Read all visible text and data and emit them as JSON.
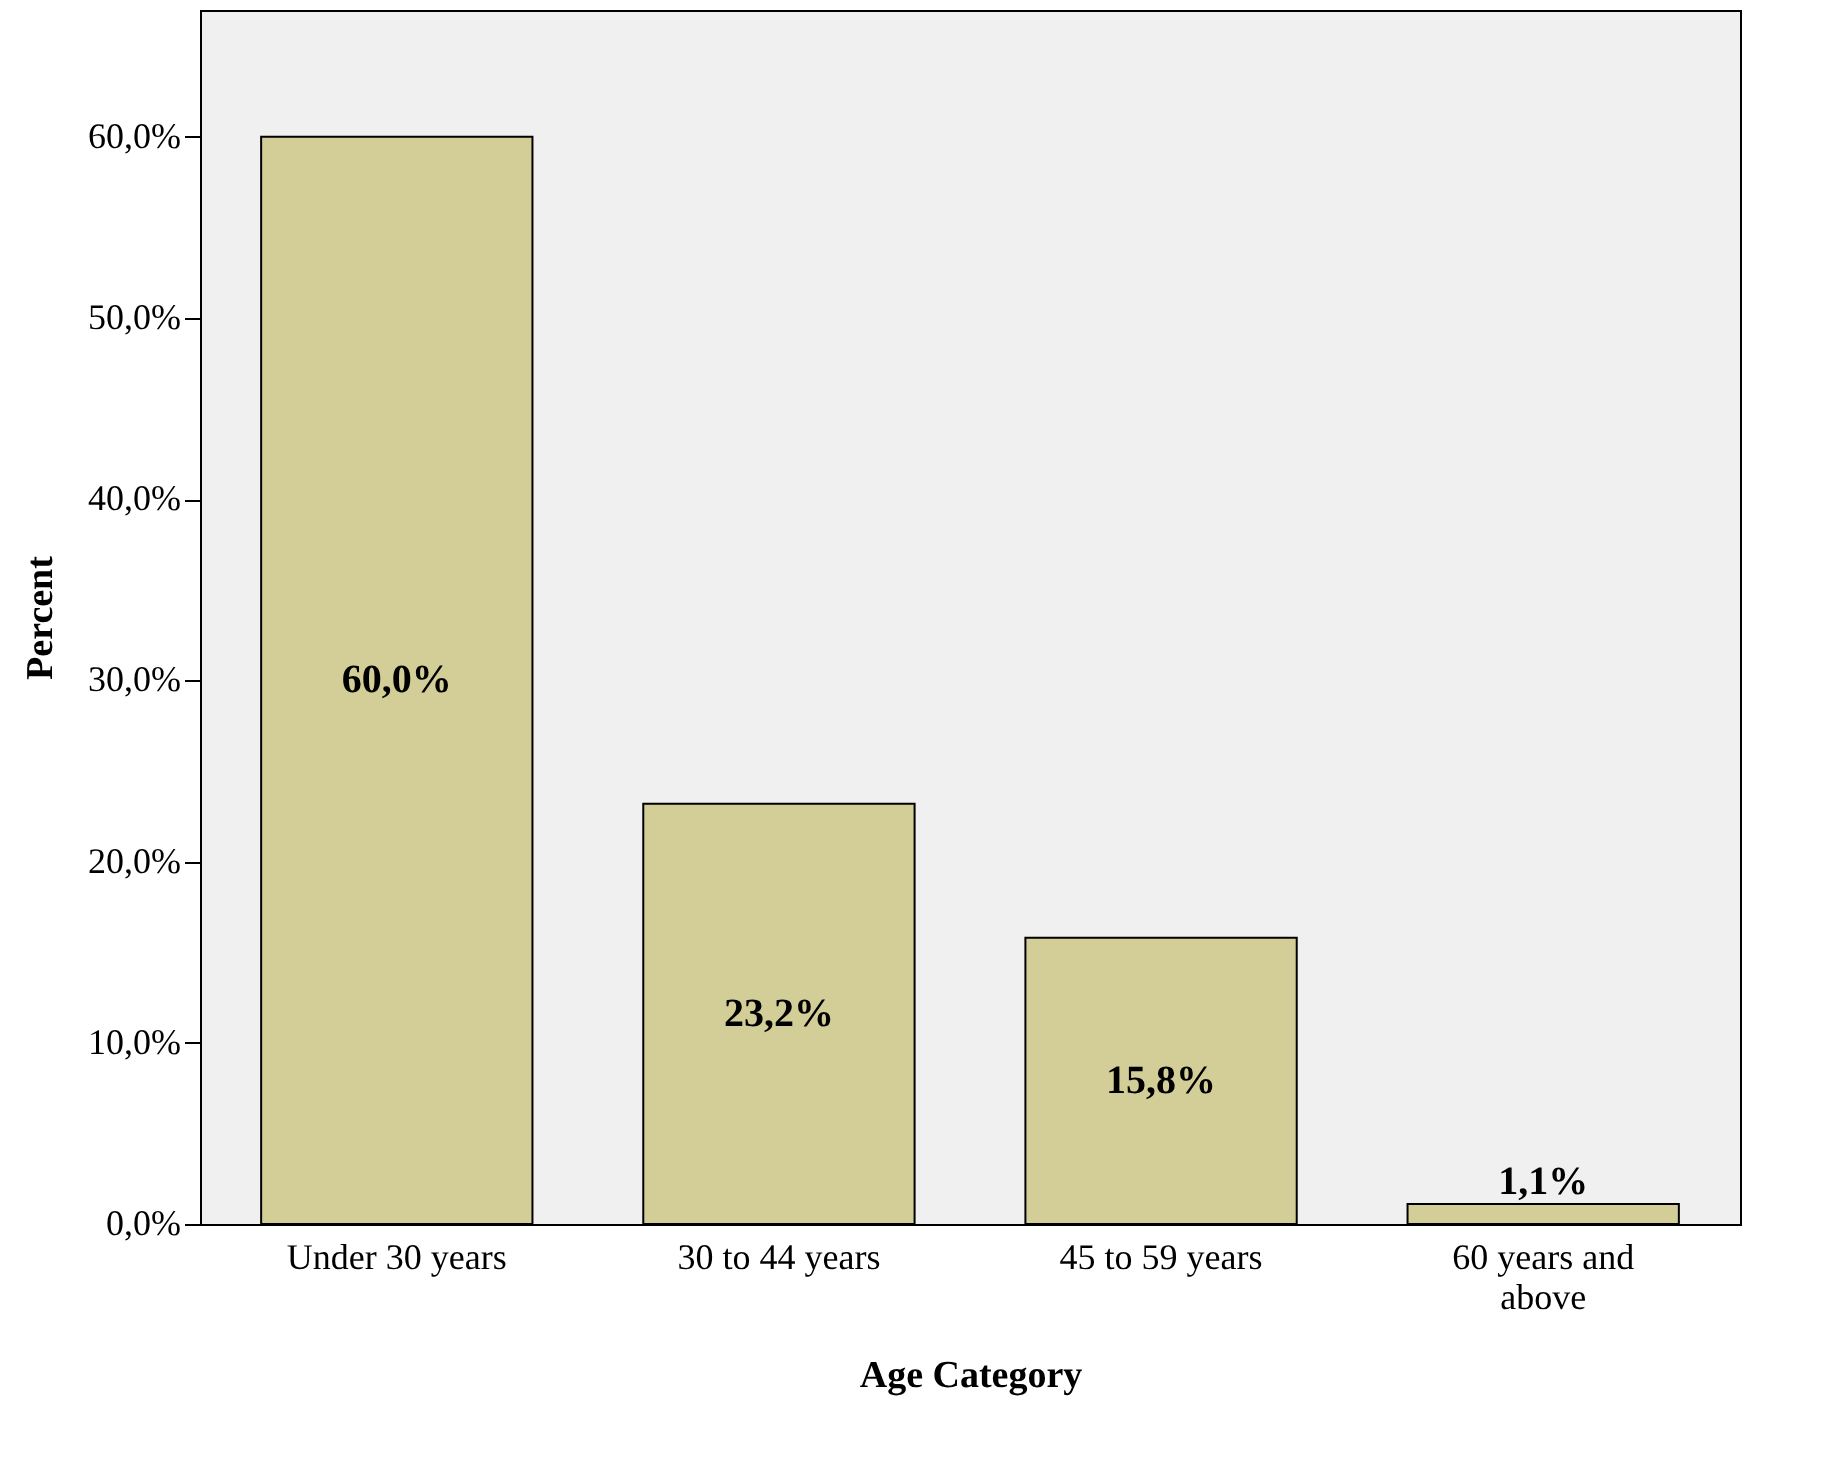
{
  "chart_data": {
    "type": "bar",
    "xlabel": "Age Category",
    "ylabel": "Percent",
    "categories": [
      "Under 30 years",
      "30 to 44 years",
      "45 to 59 years",
      "60 years and above"
    ],
    "values": [
      60.0,
      23.2,
      15.8,
      1.1
    ],
    "value_labels": [
      "60,0%",
      "23,2%",
      "15,8%",
      "1,1%"
    ],
    "color": "#d3ce97",
    "ylim": [
      0,
      67
    ],
    "yticks": [
      {
        "value": 0,
        "label": "0,0%"
      },
      {
        "value": 10,
        "label": "10,0%"
      },
      {
        "value": 20,
        "label": "20,0%"
      },
      {
        "value": 30,
        "label": "30,0%"
      },
      {
        "value": 40,
        "label": "40,0%"
      },
      {
        "value": 50,
        "label": "50,0%"
      },
      {
        "value": 60,
        "label": "60,0%"
      }
    ],
    "grid": false
  }
}
